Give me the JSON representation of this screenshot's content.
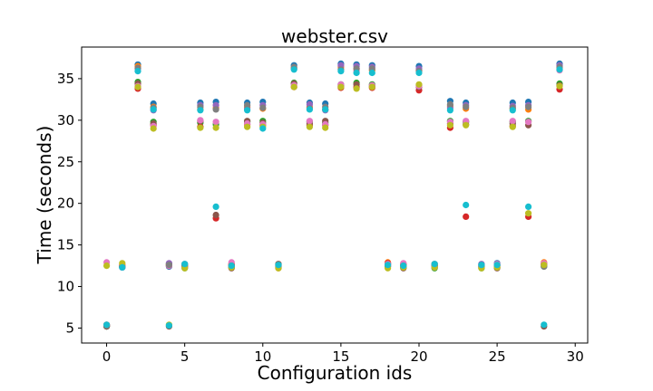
{
  "chart_data": {
    "type": "scatter",
    "title": "webster.csv",
    "xlabel": "Configuration ids",
    "ylabel": "Time (seconds)",
    "xlim": [
      -1.6,
      30.8
    ],
    "ylim": [
      3.2,
      38.8
    ],
    "xticks": [
      0,
      5,
      10,
      15,
      20,
      25,
      30
    ],
    "yticks": [
      5,
      10,
      15,
      20,
      25,
      30,
      35
    ],
    "grid": false,
    "legend": "none",
    "colors": [
      "#1f77b4",
      "#ff7f0e",
      "#2ca02c",
      "#d62728",
      "#9467bd",
      "#8c564b",
      "#e377c2",
      "#7f7f7f",
      "#bcbd22",
      "#17becf"
    ],
    "series": [
      {
        "x": [
          0,
          0,
          0,
          0,
          0,
          0,
          0,
          0,
          0,
          0
        ],
        "y": [
          5.2,
          5.3,
          5.2,
          5.4,
          5.3,
          5.2,
          12.9,
          5.3,
          12.5,
          5.4
        ]
      },
      {
        "x": [
          1,
          1,
          1,
          1,
          1,
          1,
          1,
          1,
          1,
          1
        ],
        "y": [
          12.3,
          12.6,
          12.4,
          12.5,
          12.3,
          12.4,
          12.5,
          12.4,
          12.8,
          12.3
        ]
      },
      {
        "x": [
          2,
          2,
          2,
          2,
          2,
          2,
          2,
          2,
          2,
          2
        ],
        "y": [
          36.7,
          36.5,
          34.6,
          33.8,
          36.2,
          34.4,
          34.1,
          36.3,
          34.0,
          35.9
        ]
      },
      {
        "x": [
          3,
          3,
          3,
          3,
          3,
          3,
          3,
          3,
          3,
          3
        ],
        "y": [
          32.0,
          31.6,
          29.8,
          29.4,
          31.2,
          29.6,
          29.3,
          31.5,
          29.0,
          31.3
        ]
      },
      {
        "x": [
          4,
          4,
          4,
          4,
          4,
          4,
          4,
          4,
          4,
          4
        ],
        "y": [
          12.4,
          12.6,
          12.7,
          12.5,
          12.8,
          5.2,
          12.5,
          12.6,
          5.4,
          5.3
        ]
      },
      {
        "x": [
          5,
          5,
          5,
          5,
          5,
          5,
          5,
          5,
          5,
          5
        ],
        "y": [
          12.6,
          12.3,
          12.2,
          12.4,
          12.7,
          12.5,
          12.3,
          12.4,
          12.2,
          12.7
        ]
      },
      {
        "x": [
          6,
          6,
          6,
          6,
          6,
          6,
          6,
          6,
          6,
          6
        ],
        "y": [
          32.1,
          31.3,
          29.7,
          29.2,
          31.8,
          29.9,
          30.0,
          31.6,
          29.1,
          31.2
        ]
      },
      {
        "x": [
          7,
          7,
          7,
          7,
          7,
          7,
          7,
          7,
          7,
          7
        ],
        "y": [
          32.2,
          31.5,
          29.5,
          18.2,
          31.8,
          18.6,
          29.8,
          31.3,
          29.1,
          19.6
        ]
      },
      {
        "x": [
          8,
          8,
          8,
          8,
          8,
          8,
          8,
          8,
          8,
          8
        ],
        "y": [
          12.5,
          12.7,
          12.3,
          12.6,
          12.4,
          12.2,
          12.9,
          12.5,
          12.3,
          12.5
        ]
      },
      {
        "x": [
          9,
          9,
          9,
          9,
          9,
          9,
          9,
          9,
          9,
          9
        ],
        "y": [
          32.1,
          31.6,
          29.8,
          29.5,
          31.4,
          29.9,
          29.6,
          31.8,
          29.2,
          31.2
        ]
      },
      {
        "x": [
          10,
          10,
          10,
          10,
          10,
          10,
          10,
          10,
          10,
          10
        ],
        "y": [
          32.2,
          31.4,
          29.9,
          29.4,
          31.8,
          29.7,
          29.5,
          31.5,
          29.2,
          29.0
        ]
      },
      {
        "x": [
          11,
          11,
          11,
          11,
          11,
          11,
          11,
          11,
          11,
          11
        ],
        "y": [
          12.6,
          12.2,
          12.3,
          12.5,
          12.4,
          12.7,
          12.3,
          12.4,
          12.2,
          12.6
        ]
      },
      {
        "x": [
          12,
          12,
          12,
          12,
          12,
          12,
          12,
          12,
          12,
          12
        ],
        "y": [
          36.6,
          36.3,
          34.5,
          34.0,
          36.2,
          34.4,
          34.2,
          36.4,
          34.0,
          36.1
        ]
      },
      {
        "x": [
          13,
          13,
          13,
          13,
          13,
          13,
          13,
          13,
          13,
          13
        ],
        "y": [
          32.1,
          31.6,
          29.8,
          29.4,
          31.9,
          29.6,
          29.9,
          31.4,
          29.2,
          31.3
        ]
      },
      {
        "x": [
          14,
          14,
          14,
          14,
          14,
          14,
          14,
          14,
          14,
          14
        ],
        "y": [
          32.0,
          31.3,
          29.7,
          29.4,
          31.2,
          29.9,
          29.5,
          31.6,
          29.1,
          31.3
        ]
      },
      {
        "x": [
          15,
          15,
          15,
          15,
          15,
          15,
          15,
          15,
          15,
          15
        ],
        "y": [
          36.8,
          36.4,
          34.3,
          33.9,
          36.6,
          34.1,
          34.3,
          36.1,
          34.0,
          35.9
        ]
      },
      {
        "x": [
          16,
          16,
          16,
          16,
          16,
          16,
          16,
          16,
          16,
          16
        ],
        "y": [
          36.7,
          36.2,
          34.5,
          34.0,
          36.5,
          34.3,
          35.9,
          36.2,
          33.8,
          35.7
        ]
      },
      {
        "x": [
          17,
          17,
          17,
          17,
          17,
          17,
          17,
          17,
          17,
          17
        ],
        "y": [
          36.6,
          36.0,
          34.3,
          33.9,
          36.4,
          34.1,
          34.2,
          36.2,
          34.0,
          35.7
        ]
      },
      {
        "x": [
          18,
          18,
          18,
          18,
          18,
          18,
          18,
          18,
          18,
          18
        ],
        "y": [
          12.7,
          12.9,
          12.4,
          12.8,
          12.6,
          12.5,
          12.7,
          12.4,
          12.2,
          12.6
        ]
      },
      {
        "x": [
          19,
          19,
          19,
          19,
          19,
          19,
          19,
          19,
          19,
          19
        ],
        "y": [
          12.5,
          12.7,
          12.3,
          12.6,
          12.4,
          12.2,
          12.8,
          12.5,
          12.3,
          12.5
        ]
      },
      {
        "x": [
          20,
          20,
          20,
          20,
          20,
          20,
          20,
          20,
          20,
          20
        ],
        "y": [
          36.5,
          36.0,
          34.2,
          33.6,
          36.2,
          34.0,
          34.1,
          35.9,
          34.3,
          35.7
        ]
      },
      {
        "x": [
          21,
          21,
          21,
          21,
          21,
          21,
          21,
          21,
          21,
          21
        ],
        "y": [
          12.4,
          12.6,
          12.2,
          12.5,
          12.3,
          12.7,
          12.4,
          12.5,
          12.3,
          12.7
        ]
      },
      {
        "x": [
          22,
          22,
          22,
          22,
          22,
          22,
          22,
          22,
          22,
          22
        ],
        "y": [
          32.3,
          31.7,
          29.9,
          29.1,
          31.5,
          29.6,
          29.8,
          31.9,
          29.4,
          31.2
        ]
      },
      {
        "x": [
          23,
          23,
          23,
          23,
          23,
          23,
          23,
          23,
          23,
          23
        ],
        "y": [
          32.1,
          31.4,
          29.8,
          18.4,
          31.8,
          29.5,
          29.9,
          31.6,
          29.4,
          19.8
        ]
      },
      {
        "x": [
          24,
          24,
          24,
          24,
          24,
          24,
          24,
          24,
          24,
          24
        ],
        "y": [
          12.6,
          12.3,
          12.2,
          12.4,
          12.7,
          12.5,
          12.3,
          12.4,
          12.2,
          12.6
        ]
      },
      {
        "x": [
          25,
          25,
          25,
          25,
          25,
          25,
          25,
          25,
          25,
          25
        ],
        "y": [
          12.8,
          12.4,
          12.3,
          12.6,
          12.5,
          12.2,
          12.7,
          12.5,
          12.3,
          12.6
        ]
      },
      {
        "x": [
          26,
          26,
          26,
          26,
          26,
          26,
          26,
          26,
          26,
          26
        ],
        "y": [
          32.1,
          31.4,
          29.8,
          29.3,
          31.7,
          29.6,
          29.9,
          31.5,
          29.2,
          31.2
        ]
      },
      {
        "x": [
          27,
          27,
          27,
          27,
          27,
          27,
          27,
          27,
          27,
          27
        ],
        "y": [
          32.2,
          31.3,
          29.9,
          18.4,
          31.8,
          29.4,
          29.8,
          31.6,
          18.8,
          19.6
        ]
      },
      {
        "x": [
          28,
          28,
          28,
          28,
          28,
          28,
          28,
          28,
          28,
          28
        ],
        "y": [
          12.6,
          12.9,
          12.4,
          12.7,
          12.5,
          5.2,
          12.8,
          12.4,
          12.6,
          5.4
        ]
      },
      {
        "x": [
          29,
          29,
          29,
          29,
          29,
          29,
          29,
          29,
          29,
          29
        ],
        "y": [
          36.8,
          36.3,
          34.4,
          33.7,
          36.6,
          34.2,
          36.0,
          36.4,
          34.1,
          36.1
        ]
      }
    ]
  }
}
